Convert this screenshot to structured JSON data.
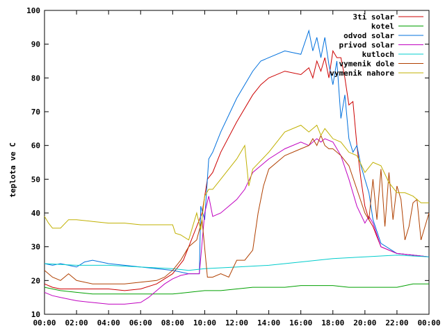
{
  "chart_data": {
    "type": "line",
    "title": "",
    "xlabel": "",
    "ylabel": "teplota ve C",
    "xlim": [
      "00:00",
      "24:00"
    ],
    "ylim": [
      10,
      100
    ],
    "x_ticks": [
      "00:00",
      "02:00",
      "04:00",
      "06:00",
      "08:00",
      "10:00",
      "12:00",
      "14:00",
      "16:00",
      "18:00",
      "20:00",
      "22:00",
      "00:00"
    ],
    "y_ticks": [
      10,
      20,
      30,
      40,
      50,
      60,
      70,
      80,
      90,
      100
    ],
    "grid": false,
    "legend_position": "top-right",
    "series": [
      {
        "name": "3ti solar",
        "color": "#cc0000",
        "x": [
          "00:00",
          "00:30",
          "01:00",
          "02:00",
          "03:00",
          "04:00",
          "05:00",
          "06:00",
          "07:00",
          "08:00",
          "08:40",
          "09:00",
          "09:30",
          "09:50",
          "10:10",
          "10:30",
          "11:00",
          "12:00",
          "13:00",
          "13:30",
          "14:00",
          "15:00",
          "16:00",
          "16:30",
          "16:45",
          "17:00",
          "17:15",
          "17:30",
          "17:45",
          "18:00",
          "18:15",
          "18:30",
          "18:45",
          "19:00",
          "19:15",
          "19:30",
          "19:45",
          "20:00",
          "20:15",
          "20:30",
          "20:45",
          "21:00",
          "22:00",
          "23:00",
          "24:00"
        ],
        "y": [
          19,
          18,
          17.5,
          17.5,
          17.5,
          17.5,
          17,
          17.5,
          19,
          22,
          26,
          30,
          36,
          40,
          50,
          52,
          58,
          67,
          75,
          78,
          80,
          82,
          81,
          83,
          80,
          85,
          82,
          86,
          80,
          88,
          86,
          86,
          80,
          72,
          73,
          60,
          50,
          42,
          38,
          36,
          33,
          30,
          28,
          27.5,
          27
        ]
      },
      {
        "name": "kotel",
        "color": "#00a000",
        "x": [
          "00:00",
          "01:00",
          "02:00",
          "03:00",
          "04:00",
          "05:00",
          "06:00",
          "07:00",
          "08:00",
          "09:00",
          "10:00",
          "11:00",
          "12:00",
          "13:00",
          "14:00",
          "15:00",
          "16:00",
          "17:00",
          "18:00",
          "19:00",
          "20:00",
          "21:00",
          "22:00",
          "23:00",
          "24:00"
        ],
        "y": [
          18,
          17,
          16.5,
          16,
          16,
          16,
          16,
          16,
          16,
          16.5,
          17,
          17,
          17.5,
          18,
          18,
          18,
          18.5,
          18.5,
          18.5,
          18,
          18,
          18,
          18,
          19,
          19
        ]
      },
      {
        "name": "odvod solar",
        "color": "#0070dd",
        "x": [
          "00:00",
          "00:30",
          "01:00",
          "01:30",
          "02:00",
          "02:30",
          "03:00",
          "04:00",
          "05:00",
          "06:00",
          "07:00",
          "08:00",
          "09:00",
          "09:40",
          "09:45",
          "10:00",
          "10:15",
          "10:30",
          "11:00",
          "12:00",
          "13:00",
          "13:30",
          "14:00",
          "15:00",
          "16:00",
          "16:30",
          "16:45",
          "17:00",
          "17:15",
          "17:30",
          "17:45",
          "18:00",
          "18:15",
          "18:30",
          "18:45",
          "19:00",
          "19:15",
          "19:30",
          "19:45",
          "20:00",
          "20:15",
          "20:30",
          "21:00",
          "22:00",
          "23:00",
          "24:00"
        ],
        "y": [
          25,
          24.5,
          25,
          24.5,
          24,
          25.5,
          26,
          25,
          24.5,
          24,
          23.5,
          23,
          22,
          22,
          42,
          38,
          56,
          58,
          64,
          74,
          82,
          85,
          86,
          88,
          87,
          94,
          88,
          92,
          86,
          92,
          84,
          78,
          85,
          68,
          75,
          62,
          58,
          60,
          54,
          50,
          46,
          38,
          31,
          28,
          27.5,
          27
        ]
      },
      {
        "name": "privod solar",
        "color": "#c000c0",
        "x": [
          "00:00",
          "00:30",
          "01:00",
          "02:00",
          "03:00",
          "04:00",
          "05:00",
          "06:00",
          "06:30",
          "07:00",
          "07:30",
          "08:00",
          "08:30",
          "09:00",
          "09:40",
          "10:00",
          "10:15",
          "10:30",
          "11:00",
          "12:00",
          "12:30",
          "13:00",
          "14:00",
          "15:00",
          "16:00",
          "16:30",
          "17:00",
          "17:15",
          "17:30",
          "18:00",
          "18:30",
          "19:00",
          "19:30",
          "20:00",
          "20:15",
          "20:30",
          "21:00",
          "22:00",
          "23:00",
          "24:00"
        ],
        "y": [
          16.5,
          15.5,
          15,
          14,
          13.5,
          13,
          13,
          13.5,
          15,
          17,
          19,
          20.5,
          21.5,
          22,
          22,
          40,
          45,
          39,
          40,
          44,
          47,
          52,
          56,
          59,
          61,
          60,
          62,
          61,
          62,
          61,
          57,
          50,
          42,
          37,
          39,
          37,
          30,
          28,
          27.5,
          27
        ]
      },
      {
        "name": "kutloch",
        "color": "#00cccc",
        "x": [
          "00:00",
          "02:00",
          "04:00",
          "06:00",
          "08:00",
          "09:00",
          "10:00",
          "12:00",
          "14:00",
          "16:00",
          "18:00",
          "20:00",
          "22:00",
          "24:00"
        ],
        "y": [
          25,
          24.5,
          24.5,
          24,
          23.5,
          23,
          23.5,
          24,
          24.5,
          25.5,
          26.5,
          27,
          27.5,
          27
        ]
      },
      {
        "name": "vymenik dole",
        "color": "#b04000",
        "x": [
          "00:00",
          "00:30",
          "01:00",
          "01:30",
          "02:00",
          "03:00",
          "04:00",
          "05:00",
          "06:00",
          "07:00",
          "07:30",
          "08:00",
          "08:30",
          "09:00",
          "09:30",
          "09:50",
          "10:10",
          "10:30",
          "11:00",
          "11:30",
          "12:00",
          "12:30",
          "13:00",
          "13:20",
          "13:40",
          "14:00",
          "15:00",
          "16:00",
          "16:30",
          "16:45",
          "17:00",
          "17:15",
          "17:30",
          "17:45",
          "18:00",
          "18:30",
          "19:00",
          "19:30",
          "20:00",
          "20:15",
          "20:30",
          "20:45",
          "21:00",
          "21:15",
          "21:30",
          "21:45",
          "22:00",
          "22:15",
          "22:30",
          "22:45",
          "23:00",
          "23:15",
          "23:30",
          "24:00"
        ],
        "y": [
          23,
          21,
          20,
          22,
          20,
          19,
          19,
          19,
          19.5,
          20,
          21,
          23,
          26,
          30,
          32,
          38,
          21,
          21,
          22,
          21,
          26,
          26,
          29,
          40,
          48,
          53,
          57,
          59,
          60,
          62,
          60,
          63,
          60,
          59,
          59,
          57,
          54,
          47,
          40,
          38,
          50,
          38,
          53,
          36,
          52,
          38,
          48,
          44,
          32,
          36,
          43,
          44,
          32,
          40
        ]
      },
      {
        "name": "vymenik nahore",
        "color": "#c0b000",
        "x": [
          "00:00",
          "00:15",
          "00:30",
          "01:00",
          "01:30",
          "02:00",
          "03:00",
          "04:00",
          "05:00",
          "06:00",
          "07:00",
          "08:00",
          "08:10",
          "08:30",
          "09:00",
          "09:30",
          "09:45",
          "10:00",
          "10:15",
          "10:30",
          "11:00",
          "12:00",
          "12:30",
          "12:45",
          "13:00",
          "14:00",
          "15:00",
          "16:00",
          "16:30",
          "17:00",
          "17:15",
          "17:30",
          "18:00",
          "18:30",
          "19:00",
          "19:30",
          "20:00",
          "20:30",
          "21:00",
          "21:30",
          "22:00",
          "22:30",
          "23:00",
          "23:30",
          "24:00"
        ],
        "y": [
          39,
          37,
          35.5,
          35.5,
          38,
          38,
          37.5,
          37,
          37,
          36.5,
          36.5,
          36.5,
          34,
          33.5,
          32,
          40,
          35,
          45,
          47,
          47,
          50,
          56,
          60,
          48,
          53,
          58,
          64,
          66,
          64,
          66,
          63,
          65,
          62,
          61,
          58,
          57,
          52,
          55,
          54,
          49,
          46,
          46,
          45,
          43,
          43
        ]
      }
    ]
  }
}
